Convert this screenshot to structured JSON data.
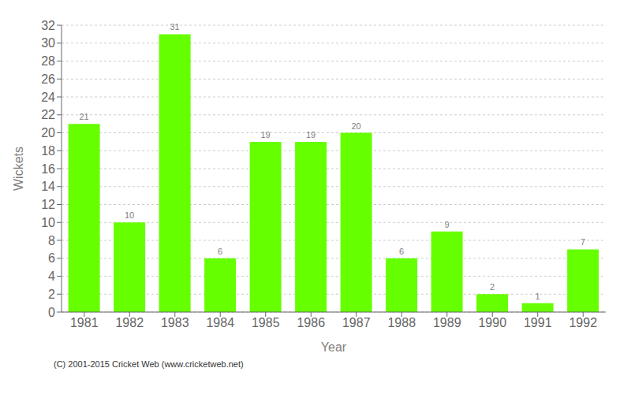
{
  "chart_data": {
    "type": "bar",
    "categories": [
      "1981",
      "1982",
      "1983",
      "1984",
      "1985",
      "1986",
      "1987",
      "1988",
      "1989",
      "1990",
      "1991",
      "1992"
    ],
    "values": [
      21,
      10,
      31,
      6,
      19,
      19,
      20,
      6,
      9,
      2,
      1,
      7
    ],
    "color": "#66ff00",
    "xlabel": "Year",
    "ylabel": "Wickets",
    "ylim": [
      0,
      32
    ],
    "yticks": [
      0,
      2,
      4,
      6,
      8,
      10,
      12,
      14,
      16,
      18,
      20,
      22,
      24,
      26,
      28,
      30,
      32
    ],
    "grid": true,
    "data_labels": true,
    "annotations": [
      "(C) 2001-2015 Cricket Web (www.cricketweb.net)"
    ]
  }
}
